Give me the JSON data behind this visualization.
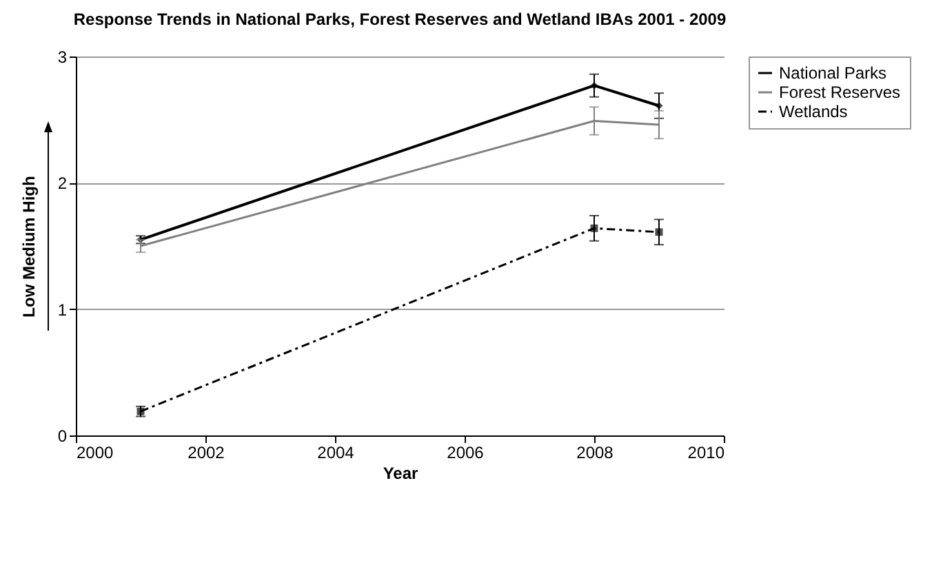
{
  "chart_data": {
    "type": "line",
    "title": "Response Trends in  National Parks, Forest Reserves and Wetland IBAs 2001 - 2009",
    "xlabel": "Year",
    "ylabel": "Low  Medium  High",
    "x": [
      2001,
      2008,
      2009
    ],
    "series": [
      {
        "name": "National Parks",
        "color": "#000000",
        "values": [
          1.55,
          2.77,
          2.61
        ],
        "errors": [
          0.03,
          0.09,
          0.1
        ],
        "marker": "diamond",
        "line_style": "solid"
      },
      {
        "name": "Forest Reserves",
        "color": "#808080",
        "values": [
          1.5,
          2.49,
          2.46
        ],
        "errors": [
          0.05,
          0.11,
          0.11
        ],
        "marker": "none",
        "line_style": "solid"
      },
      {
        "name": "Wetlands",
        "color": "#000000",
        "values": [
          0.19,
          1.64,
          1.61
        ],
        "errors": [
          0.04,
          0.1,
          0.1
        ],
        "marker": "square",
        "line_style": "dashed"
      }
    ],
    "xlim": [
      2000,
      2010
    ],
    "xticks": [
      2000,
      2002,
      2004,
      2006,
      2008,
      2010
    ],
    "ylim": [
      0,
      3
    ],
    "yticks": [
      0,
      1,
      2,
      3
    ],
    "grid": "y",
    "legend": "right"
  }
}
